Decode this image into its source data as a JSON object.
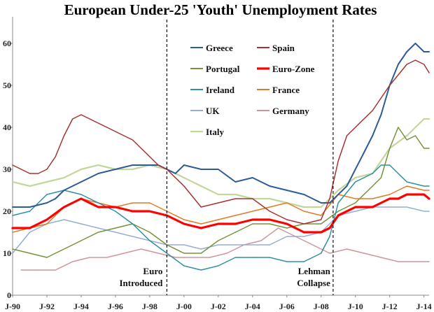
{
  "chart_data": {
    "type": "line",
    "title": "European Under-25 'Youth' Unemployment Rates",
    "xlabel": "",
    "ylabel": "",
    "xlim": [
      1990.0,
      2014.3
    ],
    "ylim": [
      0,
      65
    ],
    "y_ticks": [
      0,
      10,
      20,
      30,
      40,
      50,
      60
    ],
    "x_ticks": [
      {
        "label": "J-90",
        "value": 1990
      },
      {
        "label": "J-92",
        "value": 1992
      },
      {
        "label": "J-94",
        "value": 1994
      },
      {
        "label": "J-96",
        "value": 1996
      },
      {
        "label": "J-98",
        "value": 1998
      },
      {
        "label": "J-00",
        "value": 2000
      },
      {
        "label": "J-02",
        "value": 2002
      },
      {
        "label": "J-04",
        "value": 2004
      },
      {
        "label": "J-06",
        "value": 2006
      },
      {
        "label": "J-08",
        "value": 2008
      },
      {
        "label": "J-10",
        "value": 2010
      },
      {
        "label": "J-12",
        "value": 2012
      },
      {
        "label": "J-14",
        "value": 2014
      }
    ],
    "grid": false,
    "legend_position": "top-center",
    "annotations": [
      {
        "lines": [
          "Euro",
          "Introduced"
        ],
        "x": 1999.0
      },
      {
        "lines": [
          "Lehman",
          "Collapse"
        ],
        "x": 2008.7
      }
    ],
    "series": [
      {
        "name": "Greece",
        "color": "#2e5b9a",
        "width": 2,
        "x": [
          1990.0,
          1991.0,
          1992.0,
          1992.5,
          1993.0,
          1994.0,
          1995.0,
          1996.0,
          1997.0,
          1998.0,
          1998.5,
          1999.0,
          1999.5,
          2000.0,
          2001.0,
          2002.0,
          2003.0,
          2004.0,
          2005.0,
          2006.0,
          2007.0,
          2008.0,
          2008.5,
          2009.0,
          2009.5,
          2010.0,
          2010.5,
          2011.0,
          2011.5,
          2012.0,
          2012.5,
          2013.0,
          2013.5,
          2014.0,
          2014.3
        ],
        "y": [
          21,
          21,
          22,
          23,
          25,
          27,
          29,
          30,
          31,
          31,
          31,
          30,
          29,
          31,
          30,
          30,
          27,
          28,
          26,
          25,
          24,
          22,
          22,
          24,
          26,
          30,
          34,
          38,
          43,
          50,
          55,
          58,
          60,
          58,
          58
        ]
      },
      {
        "name": "Spain",
        "color": "#a83232",
        "width": 1.5,
        "x": [
          1990.0,
          1991.0,
          1991.5,
          1992.0,
          1992.5,
          1993.0,
          1993.5,
          1994.0,
          1994.5,
          1995.0,
          1995.5,
          1996.0,
          1997.0,
          1998.0,
          1998.5,
          1999.0,
          1999.5,
          2000.0,
          2001.0,
          2002.0,
          2003.0,
          2004.0,
          2005.0,
          2006.0,
          2007.0,
          2008.0,
          2008.5,
          2009.0,
          2009.5,
          2010.0,
          2011.0,
          2012.0,
          2013.0,
          2013.5,
          2014.0,
          2014.3
        ],
        "y": [
          31,
          29,
          29,
          30,
          33,
          38,
          42,
          43,
          42,
          41,
          40,
          39,
          37,
          33,
          31,
          30,
          28,
          26,
          21,
          22,
          23,
          23,
          20,
          18,
          17,
          18,
          23,
          32,
          38,
          40,
          44,
          50,
          55,
          56,
          55,
          53
        ]
      },
      {
        "name": "Portugal",
        "color": "#76933c",
        "width": 1.5,
        "x": [
          1990.0,
          1991.0,
          1992.0,
          1993.0,
          1994.0,
          1995.0,
          1996.0,
          1997.0,
          1998.0,
          1999.0,
          2000.0,
          2001.0,
          2002.0,
          2003.0,
          2004.0,
          2005.0,
          2006.0,
          2007.0,
          2008.0,
          2009.0,
          2010.0,
          2011.0,
          2011.5,
          2012.0,
          2012.5,
          2013.0,
          2013.5,
          2014.0,
          2014.3
        ],
        "y": [
          11,
          10,
          9,
          11,
          13,
          15,
          16,
          17,
          15,
          12,
          10,
          10,
          13,
          15,
          17,
          17,
          16,
          17,
          17,
          20,
          22,
          26,
          28,
          35,
          40,
          37,
          38,
          35,
          35
        ]
      },
      {
        "name": "Euro-Zone",
        "color": "#ff0000",
        "width": 3.2,
        "x": [
          1990.0,
          1991.0,
          1992.0,
          1993.0,
          1993.5,
          1994.0,
          1995.0,
          1996.0,
          1997.0,
          1998.0,
          1999.0,
          2000.0,
          2001.0,
          2002.0,
          2003.0,
          2004.0,
          2005.0,
          2006.0,
          2007.0,
          2008.0,
          2008.5,
          2009.0,
          2009.5,
          2010.0,
          2011.0,
          2012.0,
          2012.5,
          2013.0,
          2013.5,
          2014.0,
          2014.3
        ],
        "y": [
          16,
          16,
          18,
          21,
          22,
          23,
          21,
          21,
          20,
          20,
          19,
          17,
          16,
          17,
          17,
          18,
          18,
          17,
          15,
          15,
          16,
          19,
          20,
          21,
          21,
          23,
          23,
          24,
          24,
          24,
          23
        ]
      },
      {
        "name": "Ireland",
        "color": "#2f8fa6",
        "width": 1.5,
        "x": [
          1990.0,
          1991.0,
          1992.0,
          1993.0,
          1994.0,
          1995.0,
          1996.0,
          1997.0,
          1998.0,
          1999.0,
          2000.0,
          2001.0,
          2002.0,
          2003.0,
          2004.0,
          2005.0,
          2006.0,
          2007.0,
          2008.0,
          2008.5,
          2009.0,
          2010.0,
          2011.0,
          2011.5,
          2012.0,
          2012.5,
          2013.0,
          2014.0,
          2014.3
        ],
        "y": [
          19,
          20,
          24,
          25,
          24,
          22,
          20,
          17,
          13,
          10,
          7,
          6,
          7,
          9,
          9,
          9,
          8,
          8,
          10,
          14,
          22,
          27,
          29,
          31,
          31,
          29,
          27,
          26,
          26
        ]
      },
      {
        "name": "France",
        "color": "#e07a28",
        "width": 1.5,
        "x": [
          1990.0,
          1991.0,
          1992.0,
          1993.0,
          1994.0,
          1995.0,
          1996.0,
          1997.0,
          1998.0,
          1999.0,
          2000.0,
          2001.0,
          2002.0,
          2003.0,
          2004.0,
          2005.0,
          2006.0,
          2007.0,
          2008.0,
          2009.0,
          2010.0,
          2011.0,
          2012.0,
          2013.0,
          2014.0,
          2014.3
        ],
        "y": [
          15,
          16,
          17,
          21,
          23,
          22,
          21,
          22,
          22,
          20,
          18,
          17,
          18,
          19,
          20,
          21,
          22,
          20,
          19,
          24,
          23,
          23,
          24,
          26,
          25,
          25
        ]
      },
      {
        "name": "UK",
        "color": "#95aed6",
        "width": 1.5,
        "x": [
          1990.0,
          1991.0,
          1992.0,
          1993.0,
          1994.0,
          1995.0,
          1996.0,
          1997.0,
          1998.0,
          1999.0,
          2000.0,
          2001.0,
          2002.0,
          2003.0,
          2004.0,
          2005.0,
          2006.0,
          2007.0,
          2008.0,
          2009.0,
          2010.0,
          2011.0,
          2012.0,
          2013.0,
          2014.0,
          2014.3
        ],
        "y": [
          10,
          15,
          17,
          18,
          17,
          16,
          15,
          14,
          13,
          12,
          12,
          11,
          12,
          12,
          12,
          12,
          14,
          14,
          15,
          19,
          20,
          21,
          21,
          21,
          20,
          20
        ]
      },
      {
        "name": "Germany",
        "color": "#d0959a",
        "width": 1.5,
        "x": [
          1990.5,
          1991.5,
          1992.5,
          1993.5,
          1994.5,
          1995.5,
          1996.5,
          1997.5,
          1998.5,
          1999.5,
          2000.5,
          2001.5,
          2002.5,
          2003.5,
          2004.5,
          2005.5,
          2006.5,
          2007.5,
          2008.5,
          2009.5,
          2010.5,
          2011.5,
          2012.5,
          2013.5,
          2014.3
        ],
        "y": [
          6,
          6,
          6,
          8,
          9,
          9,
          10,
          11,
          10,
          9,
          9,
          9,
          10,
          12,
          13,
          16,
          14,
          12,
          10,
          11,
          10,
          9,
          8,
          8,
          8
        ]
      },
      {
        "name": "Italy",
        "color": "#c3d69b",
        "width": 2.2,
        "x": [
          1990.0,
          1991.0,
          1992.0,
          1993.0,
          1994.0,
          1995.0,
          1996.0,
          1997.0,
          1998.0,
          1999.0,
          2000.0,
          2001.0,
          2002.0,
          2003.0,
          2004.0,
          2005.0,
          2006.0,
          2007.0,
          2008.0,
          2009.0,
          2010.0,
          2011.0,
          2012.0,
          2013.0,
          2014.0,
          2014.3
        ],
        "y": [
          27,
          26,
          27,
          28,
          30,
          31,
          30,
          30,
          31,
          30,
          28,
          26,
          24,
          24,
          23,
          23,
          22,
          21,
          21,
          25,
          28,
          29,
          35,
          38,
          42,
          42
        ]
      }
    ]
  }
}
